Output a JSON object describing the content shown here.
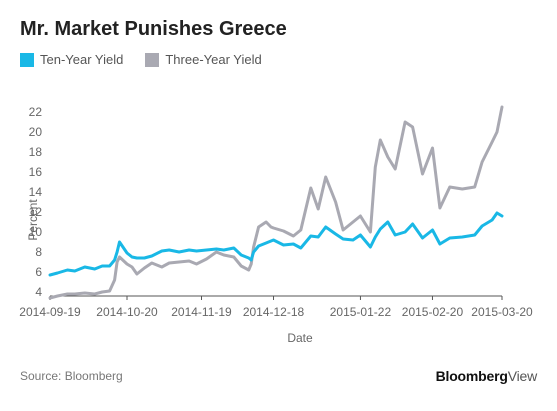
{
  "title": "Mr. Market Punishes Greece",
  "source": "Source: Bloomberg",
  "brand": {
    "main": "Bloomberg",
    "sub": "View"
  },
  "colors": {
    "ten_year": "#19b8e6",
    "three_year": "#a9a9b2",
    "axis": "#555555"
  },
  "chart_data": {
    "type": "line",
    "title": "Mr. Market Punishes Greece",
    "xlabel": "Date",
    "ylabel": "Percent",
    "ylim": [
      4,
      24
    ],
    "yticks": [
      4,
      6,
      8,
      10,
      12,
      14,
      16,
      18,
      20,
      22
    ],
    "xticks": [
      "2014-09-19",
      "2014-10-20",
      "2014-11-19",
      "2014-12-18",
      "2015-01-22",
      "2015-02-20",
      "2015-03-20"
    ],
    "xrange": [
      "2014-09-19",
      "2015-03-20"
    ],
    "grid": false,
    "legend": "top-left",
    "series": [
      {
        "name": "Ten-Year Yield",
        "color": "#19b8e6",
        "x": [
          "2014-09-19",
          "2014-09-22",
          "2014-09-26",
          "2014-09-29",
          "2014-10-03",
          "2014-10-07",
          "2014-10-10",
          "2014-10-13",
          "2014-10-15",
          "2014-10-16",
          "2014-10-17",
          "2014-10-20",
          "2014-10-22",
          "2014-10-24",
          "2014-10-27",
          "2014-10-30",
          "2014-11-03",
          "2014-11-06",
          "2014-11-10",
          "2014-11-14",
          "2014-11-17",
          "2014-11-21",
          "2014-11-25",
          "2014-11-28",
          "2014-12-02",
          "2014-12-05",
          "2014-12-08",
          "2014-12-09",
          "2014-12-10",
          "2014-12-12",
          "2014-12-15",
          "2014-12-17",
          "2014-12-18",
          "2014-12-22",
          "2014-12-26",
          "2014-12-29",
          "2015-01-02",
          "2015-01-05",
          "2015-01-08",
          "2015-01-12",
          "2015-01-15",
          "2015-01-19",
          "2015-01-22",
          "2015-01-26",
          "2015-01-28",
          "2015-01-30",
          "2015-02-02",
          "2015-02-05",
          "2015-02-09",
          "2015-02-12",
          "2015-02-16",
          "2015-02-20",
          "2015-02-23",
          "2015-02-27",
          "2015-03-04",
          "2015-03-09",
          "2015-03-12",
          "2015-03-16",
          "2015-03-18",
          "2015-03-20"
        ],
        "values": [
          5.7,
          5.9,
          6.2,
          6.1,
          6.5,
          6.3,
          6.6,
          6.6,
          7.2,
          8.0,
          9.0,
          7.9,
          7.5,
          7.4,
          7.4,
          7.6,
          8.1,
          8.2,
          8.0,
          8.2,
          8.1,
          8.2,
          8.3,
          8.2,
          8.4,
          7.7,
          7.4,
          7.2,
          8.0,
          8.6,
          8.9,
          9.1,
          9.2,
          8.7,
          8.8,
          8.4,
          9.6,
          9.5,
          10.5,
          9.8,
          9.3,
          9.2,
          9.7,
          8.5,
          9.5,
          10.3,
          11.0,
          9.7,
          10.0,
          10.8,
          9.4,
          10.2,
          8.8,
          9.4,
          9.5,
          9.7,
          10.6,
          11.2,
          11.9,
          11.6
        ]
      },
      {
        "name": "Three-Year Yield",
        "color": "#a9a9b2",
        "x": [
          "2014-09-19",
          "2014-09-22",
          "2014-09-26",
          "2014-09-29",
          "2014-10-03",
          "2014-10-07",
          "2014-10-10",
          "2014-10-13",
          "2014-10-15",
          "2014-10-16",
          "2014-10-17",
          "2014-10-20",
          "2014-10-22",
          "2014-10-24",
          "2014-10-27",
          "2014-10-30",
          "2014-11-03",
          "2014-11-06",
          "2014-11-10",
          "2014-11-14",
          "2014-11-17",
          "2014-11-21",
          "2014-11-25",
          "2014-11-28",
          "2014-12-02",
          "2014-12-05",
          "2014-12-08",
          "2014-12-09",
          "2014-12-10",
          "2014-12-12",
          "2014-12-15",
          "2014-12-17",
          "2014-12-18",
          "2014-12-22",
          "2014-12-26",
          "2014-12-29",
          "2015-01-02",
          "2015-01-05",
          "2015-01-08",
          "2015-01-12",
          "2015-01-15",
          "2015-01-19",
          "2015-01-22",
          "2015-01-26",
          "2015-01-28",
          "2015-01-30",
          "2015-02-02",
          "2015-02-05",
          "2015-02-09",
          "2015-02-12",
          "2015-02-16",
          "2015-02-20",
          "2015-02-23",
          "2015-02-27",
          "2015-03-04",
          "2015-03-09",
          "2015-03-12",
          "2015-03-16",
          "2015-03-18",
          "2015-03-20"
        ],
        "values": [
          3.4,
          3.6,
          3.8,
          3.8,
          3.9,
          3.8,
          4.0,
          4.1,
          5.2,
          7.0,
          7.5,
          6.8,
          6.5,
          5.8,
          6.4,
          6.9,
          6.5,
          6.9,
          7.0,
          7.1,
          6.8,
          7.3,
          8.0,
          7.7,
          7.5,
          6.6,
          6.2,
          6.8,
          8.5,
          10.5,
          11.0,
          10.5,
          10.4,
          10.1,
          9.6,
          10.2,
          14.4,
          12.3,
          15.5,
          13.0,
          10.2,
          11.0,
          11.6,
          10.0,
          16.5,
          19.2,
          17.5,
          16.3,
          21.0,
          20.5,
          15.8,
          18.4,
          12.4,
          14.5,
          14.3,
          14.5,
          17.0,
          19.0,
          20.0,
          22.5
        ]
      }
    ]
  }
}
